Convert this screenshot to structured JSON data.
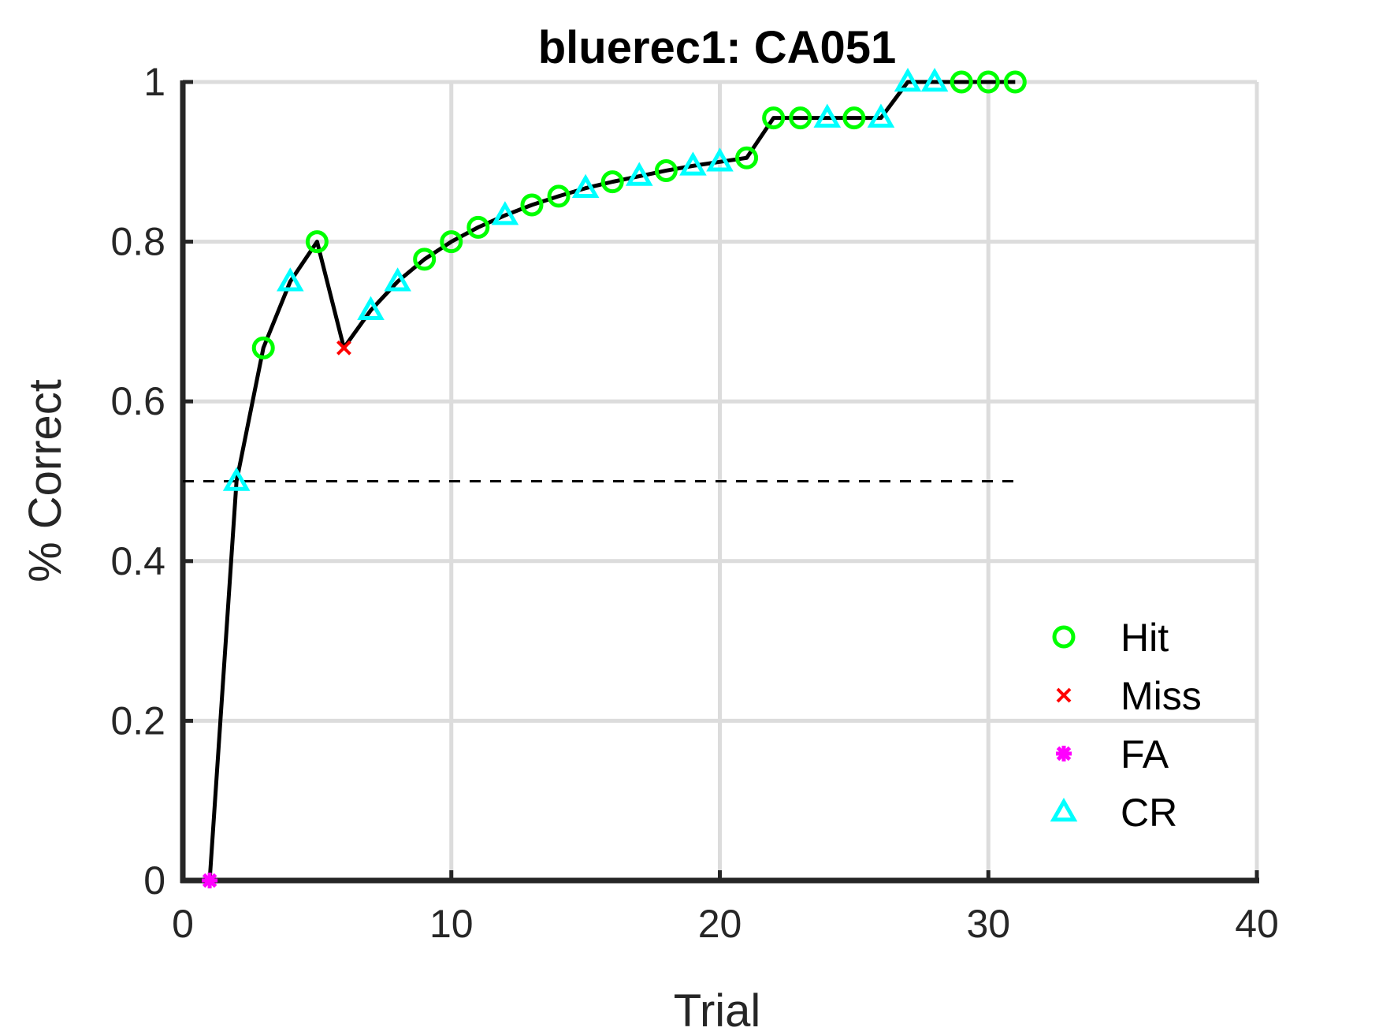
{
  "chart_data": {
    "type": "line",
    "title": "bluerec1: CA051",
    "xlabel": "Trial",
    "ylabel": "% Correct",
    "xlim": [
      0,
      40
    ],
    "ylim": [
      0,
      1
    ],
    "xticks": [
      0,
      10,
      20,
      30,
      40
    ],
    "yticks": [
      0,
      0.2,
      0.4,
      0.6,
      0.8,
      1
    ],
    "x_tick_labels": [
      "0",
      "10",
      "20",
      "30",
      "40"
    ],
    "y_tick_labels": [
      "0",
      "0.2",
      "0.4",
      "0.6",
      "0.8",
      "1"
    ],
    "grid": true,
    "line_color": "#000000",
    "chance_line": {
      "y": 0.5,
      "x": [
        0,
        31
      ],
      "style": "dashed",
      "color": "#000000"
    },
    "legend_position": "lower-right",
    "series": [
      {
        "name": "Hit",
        "marker": "circle",
        "color": "#00ff00",
        "x": [
          3,
          5,
          9,
          10,
          11,
          13,
          14,
          16,
          18,
          21,
          22,
          23,
          25,
          29,
          30,
          31
        ],
        "y": [
          0.667,
          0.8,
          0.778,
          0.8,
          0.818,
          0.846,
          0.857,
          0.875,
          0.889,
          0.905,
          0.955,
          0.955,
          0.955,
          1.0,
          1.0,
          1.0
        ]
      },
      {
        "name": "Miss",
        "marker": "x",
        "color": "#ff0000",
        "x": [
          6
        ],
        "y": [
          0.667
        ]
      },
      {
        "name": "FA",
        "marker": "asterisk",
        "color": "#ff00ff",
        "x": [
          1
        ],
        "y": [
          0
        ]
      },
      {
        "name": "CR",
        "marker": "triangle",
        "color": "#00ffff",
        "x": [
          2,
          4,
          7,
          8,
          12,
          15,
          17,
          19,
          20,
          24,
          26,
          27,
          28
        ],
        "y": [
          0.5,
          0.75,
          0.714,
          0.75,
          0.833,
          0.867,
          0.882,
          0.895,
          0.9,
          0.955,
          0.955,
          1.0,
          1.0
        ]
      }
    ],
    "performance_line": {
      "x": [
        1,
        2,
        3,
        4,
        5,
        6,
        7,
        8,
        9,
        10,
        11,
        12,
        13,
        14,
        15,
        16,
        17,
        18,
        19,
        20,
        21,
        22,
        23,
        24,
        25,
        26,
        27,
        28,
        29,
        30,
        31
      ],
      "y": [
        0,
        0.5,
        0.667,
        0.75,
        0.8,
        0.667,
        0.714,
        0.75,
        0.778,
        0.8,
        0.818,
        0.833,
        0.846,
        0.857,
        0.867,
        0.875,
        0.882,
        0.889,
        0.895,
        0.9,
        0.905,
        0.955,
        0.955,
        0.955,
        0.955,
        0.955,
        1.0,
        1.0,
        1.0,
        1.0,
        1.0
      ]
    }
  }
}
